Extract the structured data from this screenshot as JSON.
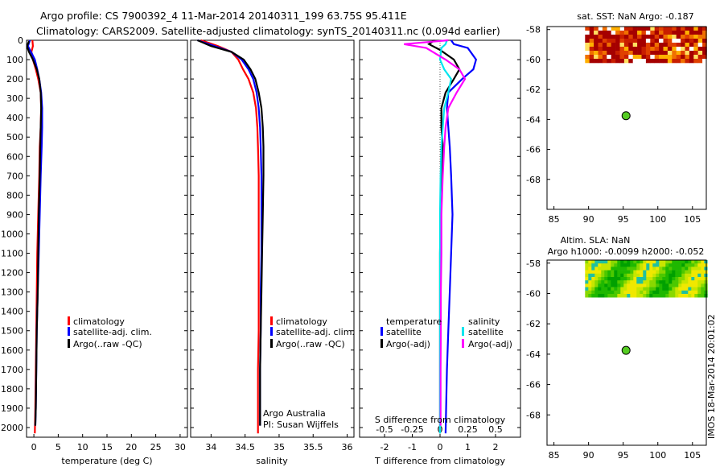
{
  "header": {
    "line1": "Argo profile: CS 7900392_4 11-Mar-2014 20140311_199 63.75S 95.411E",
    "line2": "Climatology: CARS2009. Satellite-adjusted climatology: synTS_20140311.nc (0.094d earlier)"
  },
  "colors": {
    "climatology": "#ff0000",
    "satellite": "#0000ff",
    "argo": "#000000",
    "sat_s": "#00e5ee",
    "argo_s": "#ff00ff",
    "float": "#55cc22"
  },
  "chart_data": [
    {
      "type": "line",
      "id": "temperature",
      "xlabel": "temperature (deg C)",
      "xlim": [
        -1.5,
        31.5
      ],
      "xticks": [
        "0",
        "5",
        "10",
        "15",
        "20",
        "25",
        "30"
      ],
      "ylim": [
        0,
        2050
      ],
      "yticks": [
        "0",
        "100",
        "200",
        "300",
        "400",
        "500",
        "600",
        "700",
        "800",
        "900",
        "1000",
        "1100",
        "1200",
        "1300",
        "1400",
        "1500",
        "1600",
        "1700",
        "1800",
        "1900",
        "2000"
      ],
      "legend": [
        "climatology",
        "satellite-adj. clim.",
        "Argo(..raw -QC)"
      ],
      "series": [
        {
          "name": "climatology",
          "color": "#ff0000",
          "x": [
            -0.3,
            -0.2,
            -0.5,
            -0.2,
            0.4,
            0.9,
            1.4,
            1.5,
            1.4,
            1.2,
            1.1,
            0.9,
            0.7,
            0.6,
            0.5,
            0.4,
            0.3,
            0.2
          ],
          "y": [
            0,
            30,
            60,
            100,
            150,
            200,
            270,
            350,
            450,
            550,
            700,
            900,
            1100,
            1300,
            1500,
            1700,
            1900,
            2030
          ]
        },
        {
          "name": "satellite-adj. clim.",
          "color": "#0000ff",
          "x": [
            -0.8,
            -1.2,
            -0.6,
            0.2,
            0.7,
            1.1,
            1.5,
            1.7,
            1.7,
            1.6,
            1.4,
            1.2,
            1.0,
            0.8,
            0.6,
            0.5,
            0.4,
            0.3
          ],
          "y": [
            0,
            30,
            60,
            100,
            150,
            200,
            270,
            350,
            450,
            550,
            700,
            900,
            1100,
            1300,
            1500,
            1700,
            1900,
            1990
          ]
        },
        {
          "name": "Argo(..raw -QC)",
          "color": "#000000",
          "x": [
            -1.0,
            -1.4,
            -1.0,
            -0.2,
            0.6,
            1.1,
            1.4,
            1.5,
            1.4,
            1.3,
            1.2,
            1.0,
            0.9,
            0.8,
            0.6,
            0.5,
            0.4,
            0.3
          ],
          "y": [
            5,
            30,
            60,
            100,
            150,
            200,
            270,
            350,
            450,
            550,
            700,
            900,
            1100,
            1300,
            1500,
            1700,
            1900,
            1990
          ]
        }
      ]
    },
    {
      "type": "line",
      "id": "salinity",
      "xlabel": "salinity",
      "xlim": [
        33.7,
        36.1
      ],
      "xticks": [
        "34",
        "34.5",
        "35",
        "35.5",
        "36"
      ],
      "ylim": [
        0,
        2050
      ],
      "legend": [
        "climatology",
        "satellite-adj. clim.",
        "Argo(..raw -QC)"
      ],
      "credit": [
        "Argo Australia",
        "PI: Susan Wijffels"
      ],
      "series": [
        {
          "name": "climatology",
          "color": "#ff0000",
          "x": [
            33.85,
            34.1,
            34.3,
            34.4,
            34.47,
            34.55,
            34.62,
            34.66,
            34.68,
            34.69,
            34.7,
            34.7,
            34.7,
            34.7,
            34.7,
            34.69,
            34.69
          ],
          "y": [
            0,
            30,
            60,
            100,
            150,
            200,
            270,
            350,
            450,
            550,
            700,
            900,
            1100,
            1300,
            1500,
            1700,
            2030
          ]
        },
        {
          "name": "satellite-adj. clim.",
          "color": "#0000ff",
          "x": [
            33.8,
            34.05,
            34.3,
            34.45,
            34.55,
            34.62,
            34.67,
            34.7,
            34.72,
            34.73,
            34.74,
            34.74,
            34.74,
            34.73,
            34.73,
            34.72,
            34.72
          ],
          "y": [
            0,
            30,
            60,
            100,
            150,
            200,
            270,
            350,
            450,
            550,
            700,
            900,
            1100,
            1300,
            1500,
            1700,
            1990
          ]
        },
        {
          "name": "Argo(..raw -QC)",
          "color": "#000000",
          "x": [
            33.8,
            34.0,
            34.3,
            34.48,
            34.58,
            34.65,
            34.7,
            34.74,
            34.76,
            34.77,
            34.77,
            34.76,
            34.75,
            34.74,
            34.73,
            34.72,
            34.72
          ],
          "y": [
            0,
            30,
            60,
            100,
            150,
            200,
            270,
            350,
            450,
            550,
            700,
            900,
            1100,
            1300,
            1500,
            1700,
            1990
          ]
        }
      ]
    },
    {
      "type": "line",
      "id": "differences",
      "xlabel": "T difference from climatology",
      "xlabel_top": "S difference from climatology",
      "xlim": [
        -2.9,
        2.9
      ],
      "xticks": [
        "-2",
        "-1",
        "0",
        "1",
        "2"
      ],
      "s_xticks": [
        "-0.5",
        "-0.25",
        "0",
        "0.25",
        "0.5"
      ],
      "ylim": [
        0,
        2050
      ],
      "legend": {
        "temperature_title": "temperature",
        "salinity_title": "salinity",
        "t_satellite": "satellite",
        "t_argo": "Argo(-adj)",
        "s_satellite": "satellite",
        "s_argo": "Argo(-adj)"
      },
      "series": [
        {
          "name": "temperature satellite",
          "color": "#0000ff",
          "x": [
            0.4,
            0.5,
            1.0,
            1.3,
            1.2,
            0.8,
            0.3,
            0.25,
            0.3,
            0.35,
            0.4,
            0.45,
            0.4,
            0.35,
            0.3,
            0.25,
            0.2
          ],
          "y": [
            0,
            20,
            40,
            100,
            150,
            200,
            270,
            350,
            450,
            550,
            700,
            900,
            1100,
            1300,
            1500,
            1700,
            2030
          ]
        },
        {
          "name": "temperature Argo",
          "color": "#000000",
          "x": [
            -0.2,
            -0.4,
            0.0,
            0.5,
            0.7,
            0.5,
            0.2,
            0.05,
            0.05,
            0.1,
            0.05,
            0.02,
            0.0,
            0.0,
            0.0,
            0.0,
            0.0
          ],
          "y": [
            0,
            20,
            50,
            100,
            150,
            200,
            270,
            350,
            450,
            550,
            700,
            900,
            1100,
            1300,
            1500,
            1700,
            2030
          ]
        },
        {
          "name": "salinity satellite",
          "color": "#00e5ee",
          "x": [
            0.25,
            0.2,
            0.05,
            0.0,
            0.15,
            0.4,
            0.3,
            0.15,
            0.1,
            0.05,
            0.02,
            0.0,
            0.0,
            0.0,
            0.0,
            0.0,
            0.0
          ],
          "y": [
            0,
            20,
            40,
            100,
            150,
            200,
            270,
            350,
            450,
            550,
            700,
            900,
            1100,
            1300,
            1500,
            1700,
            2030
          ]
        },
        {
          "name": "salinity Argo",
          "color": "#ff00ff",
          "x": [
            0.3,
            -1.3,
            -0.5,
            0.2,
            0.7,
            0.9,
            0.6,
            0.3,
            0.2,
            0.15,
            0.1,
            0.05,
            0.05,
            0.03,
            0.03,
            0.02,
            0.02
          ],
          "y": [
            0,
            20,
            40,
            100,
            150,
            200,
            270,
            350,
            450,
            550,
            700,
            900,
            1100,
            1300,
            1500,
            1700,
            1990
          ]
        }
      ]
    },
    {
      "type": "heatmap",
      "id": "sst-map",
      "title": "sat. SST: NaN Argo: -0.187",
      "xlim": [
        84,
        107
      ],
      "ylim": [
        -70,
        -57.8
      ],
      "xticks": [
        "85",
        "90",
        "95",
        "100",
        "105"
      ],
      "yticks": [
        "-58",
        "-60",
        "-62",
        "-64",
        "-66",
        "-68"
      ],
      "point": {
        "lon": 95.41,
        "lat": -63.75
      }
    },
    {
      "type": "heatmap",
      "id": "sla-map",
      "title": "Altim. SLA: NaN",
      "subtitle": "Argo h1000: -0.0099 h2000: -0.052",
      "xlim": [
        84,
        107
      ],
      "ylim": [
        -70,
        -57.8
      ],
      "xticks": [
        "85",
        "90",
        "95",
        "100",
        "105"
      ],
      "yticks": [
        "-58",
        "-60",
        "-62",
        "-64",
        "-66",
        "-68"
      ],
      "point": {
        "lon": 95.41,
        "lat": -63.75
      }
    }
  ],
  "footer": {
    "stamp": "IMOS 18-Mar-2014 20:01:02"
  }
}
